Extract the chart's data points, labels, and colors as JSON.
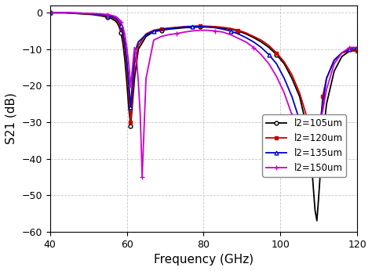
{
  "title": "",
  "xlabel": "Frequency (GHz)",
  "ylabel": "S21 (dB)",
  "xlim": [
    40,
    120
  ],
  "ylim": [
    -60,
    2
  ],
  "xticks": [
    40,
    60,
    80,
    100,
    120
  ],
  "yticks": [
    -60,
    -50,
    -40,
    -30,
    -20,
    -10,
    0
  ],
  "grid_color": "#c0c0c0",
  "background_color": "#ffffff",
  "series": [
    {
      "label": "l2=105um",
      "color": "#000000",
      "marker": "o",
      "markersize": 3.5,
      "markerfacecolor": "white",
      "linewidth": 1.3,
      "freq": [
        40,
        44,
        48,
        51,
        53,
        55,
        56,
        57,
        57.5,
        58,
        58.5,
        59,
        59.5,
        60,
        60.5,
        61,
        62,
        63,
        65,
        67,
        69,
        71,
        73,
        75,
        77,
        79,
        81,
        83,
        85,
        87,
        89,
        91,
        93,
        95,
        97,
        99,
        101,
        103,
        105,
        107,
        108,
        109,
        109.5,
        110,
        110.5,
        111,
        112,
        114,
        116,
        118,
        120
      ],
      "s21": [
        0,
        0,
        -0.3,
        -0.5,
        -0.8,
        -1.2,
        -1.6,
        -2.2,
        -2.8,
        -3.8,
        -5.5,
        -8.5,
        -13,
        -19,
        -26,
        -31,
        -18,
        -10,
        -6.5,
        -5.2,
        -4.8,
        -4.5,
        -4.3,
        -4.1,
        -4.0,
        -3.9,
        -3.9,
        -4.0,
        -4.2,
        -4.5,
        -5.0,
        -5.8,
        -6.8,
        -8.0,
        -9.5,
        -11.5,
        -14,
        -18,
        -23,
        -32,
        -40,
        -54,
        -57,
        -50,
        -42,
        -35,
        -25,
        -16,
        -12,
        -10.5,
        -10
      ]
    },
    {
      "label": "l2=120um",
      "color": "#cc0000",
      "marker": "s",
      "markersize": 3.5,
      "markerfacecolor": "#cc0000",
      "linewidth": 1.3,
      "freq": [
        40,
        44,
        48,
        51,
        53,
        55,
        56,
        57,
        57.5,
        58,
        58.5,
        59,
        59.5,
        60,
        60.5,
        61,
        62,
        63,
        65,
        67,
        69,
        71,
        73,
        75,
        77,
        79,
        81,
        83,
        85,
        87,
        89,
        91,
        93,
        95,
        97,
        99,
        101,
        103,
        105,
        107,
        108,
        109,
        109.5,
        110,
        110.5,
        111,
        112,
        114,
        116,
        118,
        120
      ],
      "s21": [
        0,
        0,
        -0.2,
        -0.4,
        -0.6,
        -0.9,
        -1.2,
        -1.7,
        -2.2,
        -3.0,
        -4.2,
        -6.5,
        -10,
        -15,
        -22,
        -30,
        -14,
        -9.0,
        -5.8,
        -4.8,
        -4.4,
        -4.2,
        -4.0,
        -3.8,
        -3.7,
        -3.6,
        -3.7,
        -3.8,
        -4.0,
        -4.3,
        -4.8,
        -5.5,
        -6.5,
        -7.5,
        -9.0,
        -11,
        -13.5,
        -17,
        -22,
        -29,
        -36,
        -43,
        -44,
        -38,
        -30,
        -23,
        -18,
        -13,
        -11,
        -10.5,
        -10.5
      ]
    },
    {
      "label": "l2=135um",
      "color": "#0000cc",
      "marker": "^",
      "markersize": 3.5,
      "markerfacecolor": "white",
      "linewidth": 1.3,
      "freq": [
        40,
        44,
        48,
        51,
        53,
        55,
        56,
        57,
        57.5,
        58,
        58.5,
        59,
        59.5,
        60,
        60.5,
        61,
        62,
        63,
        64,
        65,
        67,
        69,
        71,
        73,
        75,
        77,
        79,
        81,
        83,
        85,
        87,
        89,
        91,
        93,
        95,
        97,
        99,
        101,
        103,
        105,
        107,
        108,
        109,
        109.5,
        110,
        110.5,
        111,
        112,
        114,
        116,
        118,
        120
      ],
      "s21": [
        0,
        0,
        -0.1,
        -0.3,
        -0.5,
        -0.7,
        -1.0,
        -1.4,
        -1.8,
        -2.5,
        -3.5,
        -5.5,
        -8.5,
        -13,
        -19,
        -26,
        -11,
        -8.0,
        -7.0,
        -6.0,
        -5.0,
        -4.6,
        -4.3,
        -4.1,
        -3.9,
        -3.8,
        -3.8,
        -3.9,
        -4.1,
        -4.5,
        -5.0,
        -5.8,
        -6.8,
        -8.0,
        -9.5,
        -11.5,
        -14,
        -18,
        -23,
        -29.5,
        -34,
        -32,
        -30.5,
        -31,
        -30,
        -29,
        -25,
        -18,
        -13,
        -11,
        -10,
        -9.5
      ]
    },
    {
      "label": "l2=150um",
      "color": "#cc00cc",
      "marker": "+",
      "markersize": 5,
      "markerfacecolor": "#cc00cc",
      "linewidth": 1.3,
      "freq": [
        40,
        44,
        48,
        51,
        53,
        55,
        56,
        57,
        57.5,
        58,
        58.5,
        59,
        59.5,
        60,
        60.5,
        61,
        62,
        62.5,
        63,
        63.5,
        64,
        65,
        67,
        69,
        71,
        73,
        75,
        77,
        79,
        81,
        83,
        85,
        87,
        89,
        91,
        93,
        95,
        97,
        99,
        101,
        103,
        105,
        107,
        108,
        109,
        110,
        111,
        112,
        114,
        116,
        118,
        120
      ],
      "s21": [
        0,
        0,
        -0.1,
        -0.2,
        -0.3,
        -0.5,
        -0.7,
        -1.0,
        -1.3,
        -1.8,
        -2.5,
        -4.0,
        -6.0,
        -9.5,
        -14,
        -20,
        -9.5,
        -12,
        -19,
        -28,
        -45,
        -18,
        -7.5,
        -6.5,
        -6.0,
        -5.7,
        -5.3,
        -5.0,
        -4.8,
        -4.8,
        -5.0,
        -5.3,
        -6.0,
        -7.0,
        -8.0,
        -9.5,
        -11.5,
        -14,
        -17.5,
        -22,
        -28,
        -33,
        -30.5,
        -32,
        -33,
        -31,
        -27,
        -21,
        -14,
        -11,
        -9.5,
        -9.5
      ]
    }
  ]
}
